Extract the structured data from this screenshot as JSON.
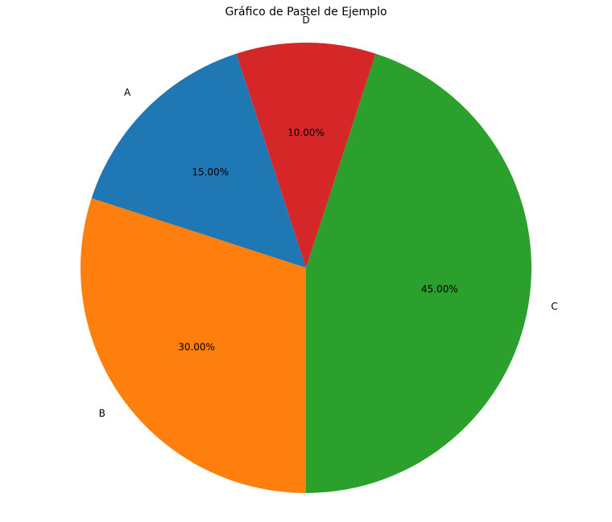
{
  "chart_data": {
    "type": "pie",
    "title": "Gráfico de Pastel de Ejemplo",
    "slices": [
      {
        "label": "A",
        "value": 15,
        "pct_label": "15.00%",
        "color": "#1f77b4"
      },
      {
        "label": "B",
        "value": 30,
        "pct_label": "30.00%",
        "color": "#ff7f0e"
      },
      {
        "label": "C",
        "value": 45,
        "pct_label": "45.00%",
        "color": "#2ca02c"
      },
      {
        "label": "D",
        "value": 10,
        "pct_label": "10.00%",
        "color": "#d62728"
      }
    ],
    "start_angle_deg": 108,
    "direction": "counterclockwise"
  }
}
